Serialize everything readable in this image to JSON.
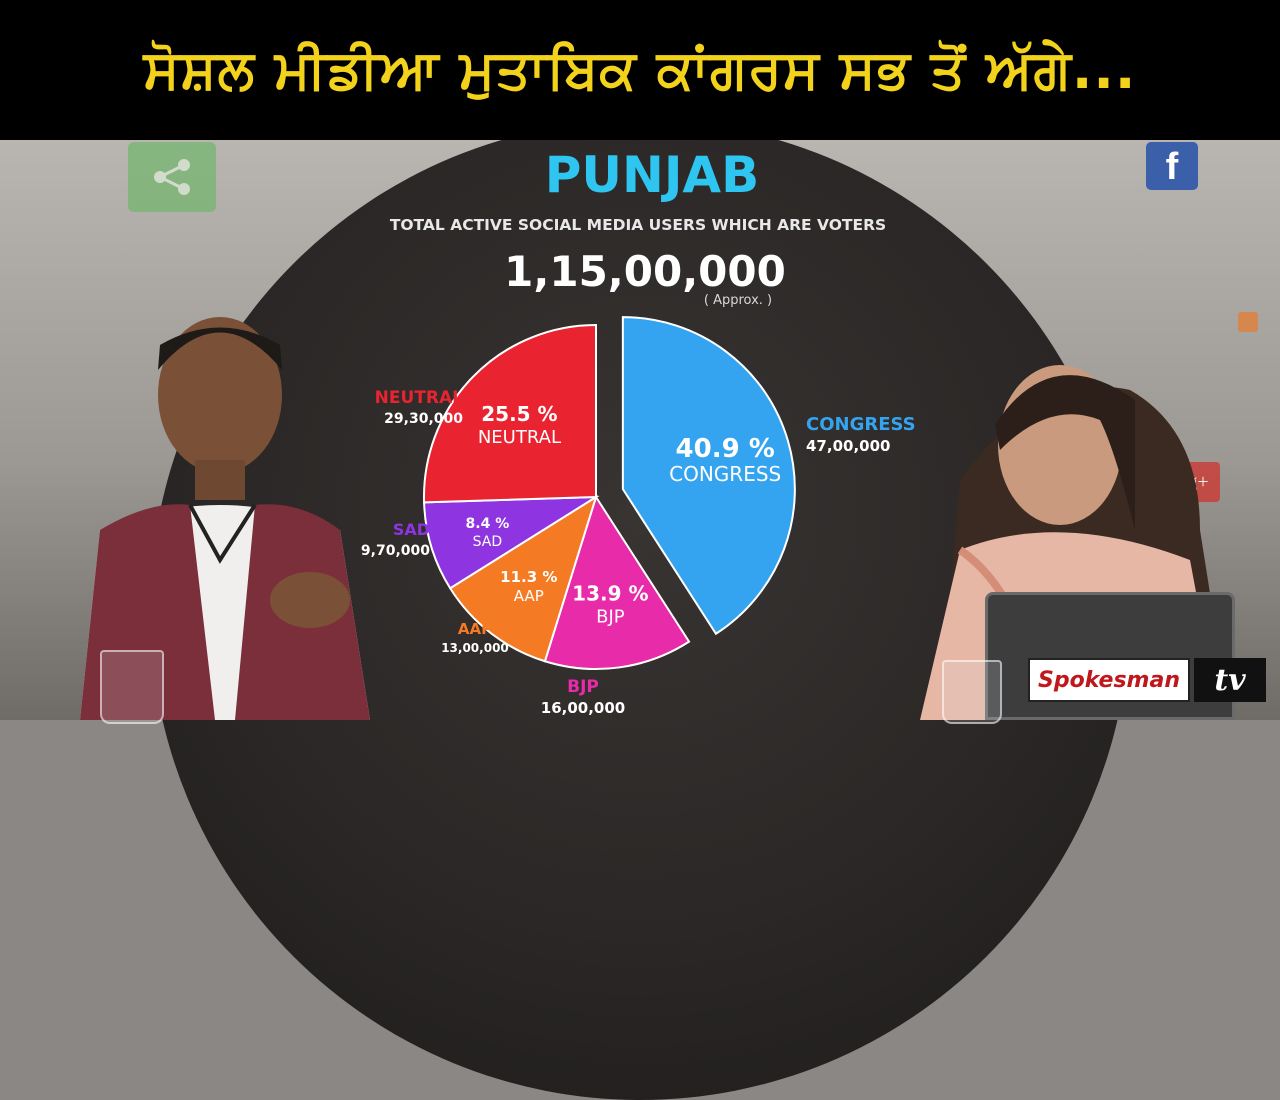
{
  "headline": "ਸੋਸ਼ਲ ਮੀਡੀਆ ਮੁਤਾਬਿਕ ਕਾਂਗਰਸ ਸਭ ਤੋਂ ਅੱਗੇ...",
  "colors": {
    "headline_text": "#f2d21b",
    "congress": "#35a4f0",
    "neutral": "#ea2330",
    "sad": "#8e34e0",
    "aap": "#f47a23",
    "bjp": "#e72ba9",
    "title": "#2ec6f0"
  },
  "icons": [
    "share-icon",
    "facebook-icon",
    "google-plus-icon",
    "rss-icon"
  ],
  "facebook_glyph": "f",
  "gplus_glyph": "g+",
  "logo": {
    "brand": "Spokesman",
    "tv": "tv"
  },
  "chart_data": {
    "type": "pie",
    "title": "PUNJAB",
    "subtitle": "TOTAL ACTIVE SOCIAL MEDIA USERS WHICH ARE VOTERS",
    "total": "1,15,00,000",
    "total_note": "( Approx. )",
    "slices": [
      {
        "name": "CONGRESS",
        "percent": 40.9,
        "percent_label": "40.9 %",
        "users": "47,00,000",
        "color": "#35a4f0",
        "exploded": true
      },
      {
        "name": "BJP",
        "percent": 13.9,
        "percent_label": "13.9 %",
        "users": "16,00,000",
        "color": "#e72ba9"
      },
      {
        "name": "AAP",
        "percent": 11.3,
        "percent_label": "11.3 %",
        "users": "13,00,000",
        "color": "#f47a23"
      },
      {
        "name": "SAD",
        "percent": 8.4,
        "percent_label": "8.4 %",
        "users": "9,70,000",
        "color": "#8e34e0"
      },
      {
        "name": "NEUTRAL",
        "percent": 25.5,
        "percent_label": "25.5 %",
        "users": "29,30,000",
        "color": "#ea2330"
      }
    ]
  }
}
